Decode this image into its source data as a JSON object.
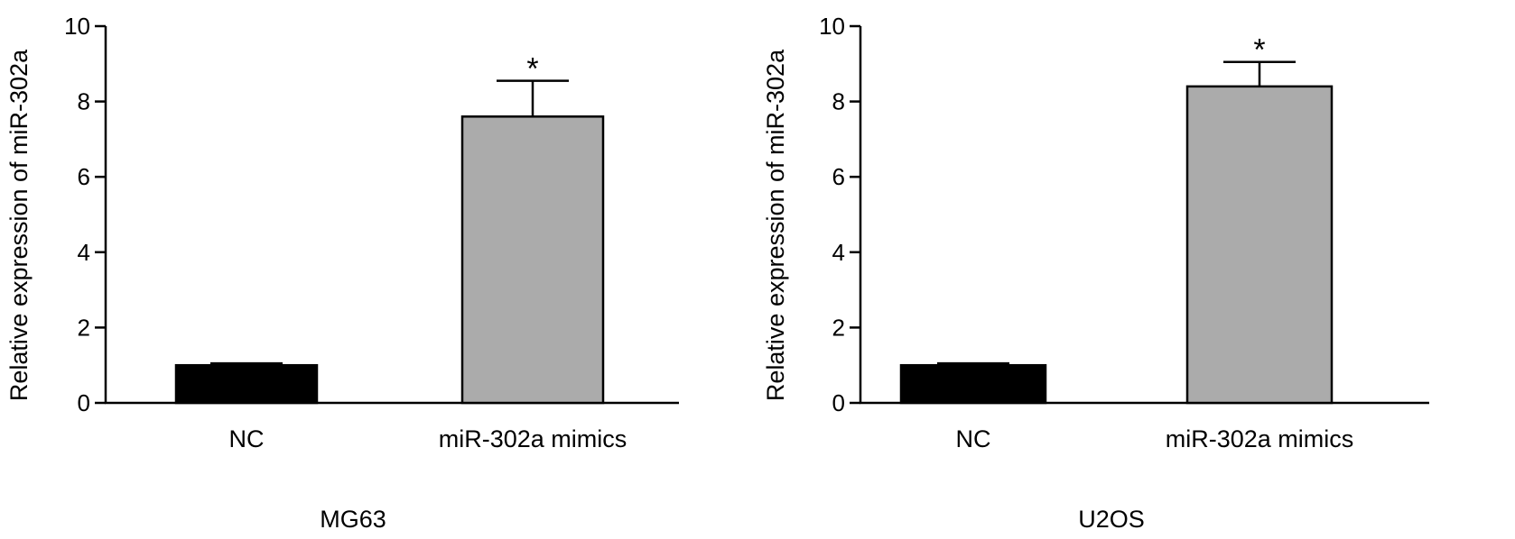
{
  "chart_data": [
    {
      "type": "bar",
      "xlabel": "MG63",
      "ylabel": "Relative expression of miR-302a",
      "ylim": [
        0,
        10
      ],
      "yticks": [
        0,
        2,
        4,
        6,
        8,
        10
      ],
      "grid": false,
      "categories": [
        "NC",
        "miR-302a mimics"
      ],
      "values": [
        1.0,
        7.6
      ],
      "errors": [
        0.05,
        0.95
      ],
      "bar_colors": [
        "#000000",
        "#ababab"
      ],
      "annotations": [
        "",
        "*"
      ]
    },
    {
      "type": "bar",
      "xlabel": "U2OS",
      "ylabel": "Relative expression of miR-302a",
      "ylim": [
        0,
        10
      ],
      "yticks": [
        0,
        2,
        4,
        6,
        8,
        10
      ],
      "grid": false,
      "categories": [
        "NC",
        "miR-302a mimics"
      ],
      "values": [
        1.0,
        8.4
      ],
      "errors": [
        0.05,
        0.65
      ],
      "bar_colors": [
        "#000000",
        "#ababab"
      ],
      "annotations": [
        "",
        "*"
      ]
    }
  ]
}
